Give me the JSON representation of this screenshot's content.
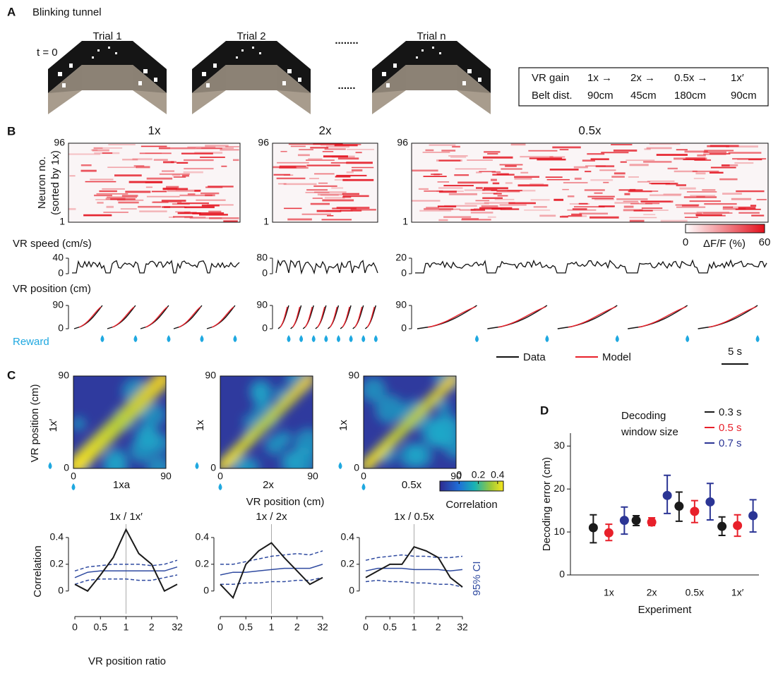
{
  "panel_a": {
    "label": "A",
    "title": "Blinking tunnel",
    "time": "t = 0",
    "trials": [
      "Trial 1",
      "Trial 2",
      "Trial n"
    ],
    "ellipsis_top": "........",
    "ellipsis_bottom": "......",
    "table": {
      "rows": [
        [
          "VR gain",
          "1x →",
          "2x →",
          "0.5x →",
          "1x′"
        ],
        [
          "Belt dist.",
          "90cm",
          "45cm",
          "180cm",
          "90cm"
        ]
      ]
    }
  },
  "panel_b": {
    "label": "B",
    "titles": [
      "1x",
      "2x",
      "0.5x"
    ],
    "neuron_label": [
      "Neuron no.",
      "(sorted by 1x)"
    ],
    "neuron_ticks": [
      96,
      1
    ],
    "colorbar": {
      "ticks": [
        0,
        60
      ],
      "label": "ΔF/F (%)"
    },
    "speed_label": "VR speed (cm/s)",
    "speed_ticks": [
      [
        40,
        0
      ],
      [
        80,
        0
      ],
      [
        20,
        0
      ]
    ],
    "position_label": "VR position (cm)",
    "position_ticks": [
      90,
      0
    ],
    "reward": "Reward",
    "legend": [
      "Data",
      "Model"
    ],
    "scalebar": "5 s"
  },
  "panel_c": {
    "label": "C",
    "maps": [
      {
        "y_label": "1x′",
        "x_label": "1xa"
      },
      {
        "y_label": "1x",
        "x_label": "2x"
      },
      {
        "y_label": "1x",
        "x_label": "0.5x"
      }
    ],
    "ticks": [
      0,
      90
    ],
    "y_title": "VR position (cm)",
    "x_title": "VR position (cm)",
    "colorbar": {
      "lim": [
        -0.2,
        0.46
      ],
      "ticks": [
        0,
        0.2,
        0.4
      ],
      "label": "Correlation"
    },
    "ylabel": "Correlation",
    "xlabel": "VR position ratio"
  },
  "chart_data": [
    {
      "type": "line",
      "title": "1x / 1x′",
      "x": [
        0,
        0.25,
        0.5,
        0.75,
        1,
        1.5,
        2,
        17,
        32
      ],
      "xticks": [
        0,
        0.5,
        1,
        2,
        32
      ],
      "ylim": [
        -0.17,
        0.5
      ],
      "yticks": [
        0,
        0.2,
        0.4
      ],
      "vline": 1,
      "series": [
        {
          "color": "#2f4aa0",
          "dash": true,
          "values": [
            0.15,
            0.18,
            0.19,
            0.2,
            0.2,
            0.2,
            0.19,
            0.2,
            0.23
          ]
        },
        {
          "color": "#2f4aa0",
          "values": [
            0.1,
            0.14,
            0.15,
            0.15,
            0.15,
            0.15,
            0.15,
            0.15,
            0.18
          ]
        },
        {
          "color": "#2f4aa0",
          "dash": true,
          "values": [
            0.05,
            0.08,
            0.09,
            0.09,
            0.09,
            0.08,
            0.08,
            0.1,
            0.12
          ]
        },
        {
          "color": "#1a1a1a",
          "values": [
            0.05,
            0.0,
            0.12,
            0.25,
            0.46,
            0.28,
            0.2,
            0.0,
            0.05
          ]
        }
      ]
    },
    {
      "type": "line",
      "title": "1x / 2x",
      "x": [
        0,
        0.25,
        0.5,
        0.75,
        1,
        1.5,
        2,
        17,
        32
      ],
      "xticks": [
        0,
        0.5,
        1,
        2,
        32
      ],
      "ylim": [
        -0.17,
        0.5
      ],
      "yticks": [
        0,
        0.2,
        0.4
      ],
      "vline": 1,
      "series": [
        {
          "color": "#2f4aa0",
          "dash": true,
          "values": [
            0.2,
            0.2,
            0.22,
            0.24,
            0.26,
            0.27,
            0.28,
            0.27,
            0.3
          ]
        },
        {
          "color": "#2f4aa0",
          "values": [
            0.12,
            0.14,
            0.14,
            0.15,
            0.16,
            0.17,
            0.17,
            0.17,
            0.2
          ]
        },
        {
          "color": "#2f4aa0",
          "dash": true,
          "values": [
            0.05,
            0.05,
            0.06,
            0.06,
            0.07,
            0.07,
            0.08,
            0.08,
            0.1
          ]
        },
        {
          "color": "#1a1a1a",
          "values": [
            0.05,
            -0.05,
            0.2,
            0.3,
            0.36,
            0.25,
            0.15,
            0.05,
            0.1
          ]
        }
      ]
    },
    {
      "type": "line",
      "title": "1x / 0.5x",
      "x": [
        0,
        0.25,
        0.5,
        0.75,
        1,
        1.5,
        2,
        17,
        32
      ],
      "xticks": [
        0,
        0.5,
        1,
        2,
        32
      ],
      "ylim": [
        -0.17,
        0.5
      ],
      "yticks": [
        0,
        0.2,
        0.4
      ],
      "vline": 1,
      "annotation": "95% CI",
      "series": [
        {
          "color": "#2f4aa0",
          "dash": true,
          "values": [
            0.23,
            0.25,
            0.26,
            0.27,
            0.26,
            0.26,
            0.25,
            0.25,
            0.26
          ]
        },
        {
          "color": "#2f4aa0",
          "values": [
            0.15,
            0.17,
            0.17,
            0.17,
            0.16,
            0.16,
            0.16,
            0.15,
            0.16
          ]
        },
        {
          "color": "#2f4aa0",
          "dash": true,
          "values": [
            0.07,
            0.08,
            0.07,
            0.07,
            0.06,
            0.06,
            0.05,
            0.05,
            0.03
          ]
        },
        {
          "color": "#1a1a1a",
          "values": [
            0.1,
            0.15,
            0.2,
            0.2,
            0.33,
            0.3,
            0.25,
            0.1,
            0.03
          ]
        }
      ]
    },
    {
      "type": "errorbar",
      "label": "D",
      "categories": [
        "1x",
        "2x",
        "0.5x",
        "1x′"
      ],
      "ylim": [
        0,
        33
      ],
      "yticks": [
        0,
        10,
        20,
        30
      ],
      "ylabel": "Decoding error (cm)",
      "xlabel": "Experiment",
      "legend_title": [
        "Decoding",
        "window size"
      ],
      "series": [
        {
          "name": "0.3 s",
          "color": "#1a1a1a",
          "values": [
            11,
            12.7,
            16,
            11.3
          ],
          "lower": [
            7.5,
            11.5,
            12.5,
            9.2
          ],
          "upper": [
            14,
            13.8,
            19.3,
            13.5
          ]
        },
        {
          "name": "0.5 s",
          "color": "#e8202a",
          "values": [
            9.8,
            12.3,
            14.8,
            11.5
          ],
          "lower": [
            8,
            11.5,
            12.2,
            9
          ],
          "upper": [
            11.8,
            13.3,
            17.3,
            14
          ]
        },
        {
          "name": "0.7 s",
          "color": "#2b3595",
          "values": [
            12.7,
            18.5,
            17,
            13.8
          ],
          "lower": [
            9.5,
            14.3,
            12.8,
            10
          ],
          "upper": [
            15.8,
            23.2,
            21.3,
            17.5
          ]
        }
      ]
    }
  ]
}
